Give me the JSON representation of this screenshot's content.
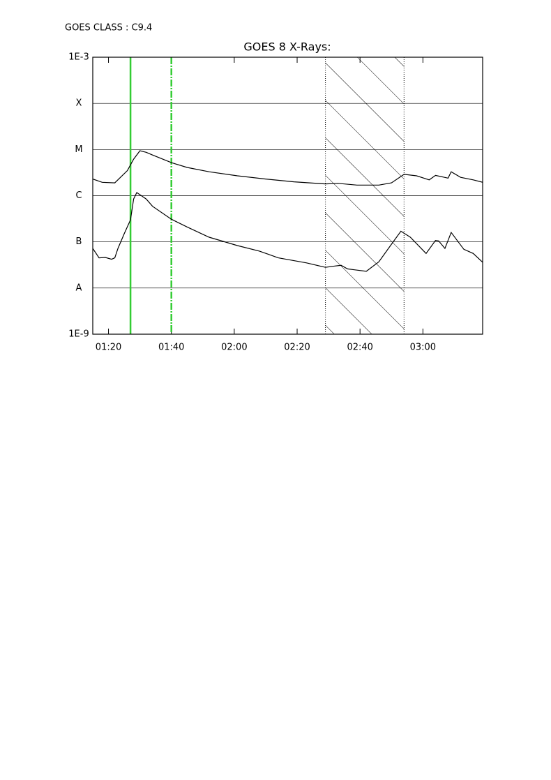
{
  "chart_data": {
    "type": "line",
    "class_label": "GOES CLASS : C9.4",
    "title": "GOES 8 X-Rays:",
    "yscale": "log",
    "ylim": [
      1e-09,
      0.001
    ],
    "yticks": [
      {
        "value": 1e-09,
        "label": "1E-9"
      },
      {
        "value": 1e-08,
        "label": "A"
      },
      {
        "value": 1e-07,
        "label": "B"
      },
      {
        "value": 1e-06,
        "label": "C"
      },
      {
        "value": 1e-05,
        "label": "M"
      },
      {
        "value": 0.0001,
        "label": "X"
      },
      {
        "value": 0.001,
        "label": "1E-3"
      }
    ],
    "grid": true,
    "xlim": [
      "01:15",
      "03:19"
    ],
    "xticks": [
      "01:20",
      "01:40",
      "02:00",
      "02:20",
      "02:40",
      "03:00"
    ],
    "series": [
      {
        "color": "#000000",
        "x": [
          "01:15",
          "01:18",
          "01:22",
          "01:26",
          "01:28",
          "01:30",
          "01:32",
          "01:34",
          "01:40",
          "01:45",
          "01:52",
          "02:01",
          "02:10",
          "02:19",
          "02:29",
          "02:33",
          "02:39",
          "02:46",
          "02:50",
          "02:54",
          "02:58",
          "03:02",
          "03:04",
          "03:08",
          "03:09",
          "03:12",
          "03:16",
          "03:19"
        ],
        "values": [
          2.3e-06,
          1.95e-06,
          1.9e-06,
          3.5e-06,
          6.2e-06,
          9.4e-06,
          8.7e-06,
          7.6e-06,
          5.2e-06,
          4.1e-06,
          3.3e-06,
          2.7e-06,
          2.3e-06,
          2e-06,
          1.8e-06,
          1.85e-06,
          1.7e-06,
          1.7e-06,
          1.9e-06,
          2.9e-06,
          2.7e-06,
          2.2e-06,
          2.75e-06,
          2.4e-06,
          3.3e-06,
          2.5e-06,
          2.2e-06,
          1.95e-06
        ]
      },
      {
        "color": "#000000",
        "x": [
          "01:15",
          "01:17",
          "01:19",
          "01:21",
          "01:22",
          "01:23",
          "01:25",
          "01:27",
          "01:28",
          "01:29",
          "01:32",
          "01:34",
          "01:40",
          "01:45",
          "01:52",
          "02:01",
          "02:08",
          "02:14",
          "02:23",
          "02:29",
          "02:32",
          "02:34",
          "02:36",
          "02:42",
          "02:46",
          "02:50",
          "02:53",
          "02:56",
          "03:01",
          "03:04",
          "03:05",
          "03:07",
          "03:09",
          "03:13",
          "03:16",
          "03:19"
        ],
        "values": [
          7.2e-08,
          4.5e-08,
          4.6e-08,
          4.2e-08,
          4.5e-08,
          7.2e-08,
          1.5e-07,
          3e-07,
          8.5e-07,
          1.17e-06,
          8.5e-07,
          5.9e-07,
          3.1e-07,
          2.1e-07,
          1.26e-07,
          8.3e-08,
          6.3e-08,
          4.5e-08,
          3.5e-08,
          2.8e-08,
          3e-08,
          3.1e-08,
          2.6e-08,
          2.3e-08,
          3.7e-08,
          8.9e-08,
          1.7e-07,
          1.26e-07,
          5.6e-08,
          1.07e-07,
          1.05e-07,
          7.2e-08,
          1.6e-07,
          6.9e-08,
          5.6e-08,
          3.6e-08
        ]
      }
    ],
    "vlines": [
      {
        "x": "01:27",
        "color": "#33cc33",
        "style": "solid"
      },
      {
        "x": "01:40",
        "color": "#33cc33",
        "style": "dashed"
      }
    ],
    "shaded": {
      "x": [
        "02:29",
        "02:54"
      ]
    }
  }
}
